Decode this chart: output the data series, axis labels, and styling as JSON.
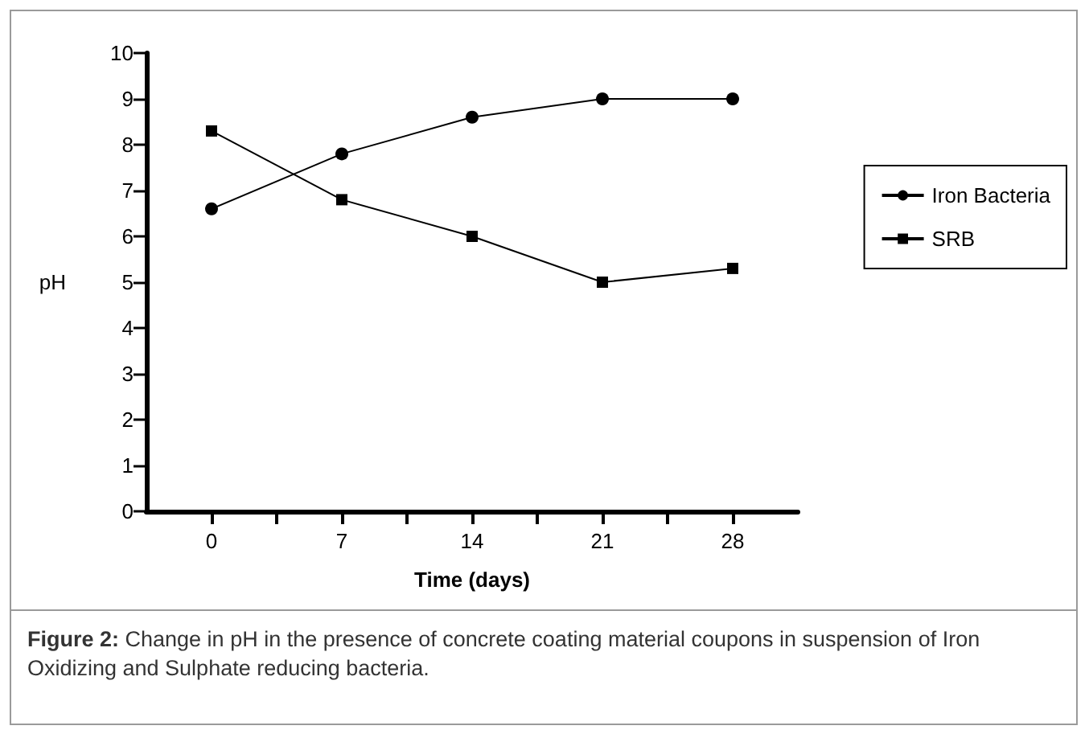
{
  "chart_data": {
    "type": "line",
    "xlabel": "Time (days)",
    "ylabel": "pH",
    "x": [
      0,
      7,
      14,
      21,
      28
    ],
    "series": [
      {
        "name": "Iron Bacteria",
        "color": "#000000",
        "marker": "circle",
        "values": [
          6.6,
          7.8,
          8.6,
          9.0,
          9.0
        ]
      },
      {
        "name": "SRB",
        "color": "#000000",
        "marker": "square",
        "values": [
          8.3,
          6.8,
          6.0,
          5.0,
          5.3
        ]
      }
    ],
    "xlim": [
      -3.5,
      31.5
    ],
    "xticks": [
      0,
      {
        "value": 3.5,
        "label": null
      },
      7,
      {
        "value": 10.5,
        "label": null
      },
      14,
      {
        "value": 17.5,
        "label": null
      },
      21,
      {
        "value": 24.5,
        "label": null
      },
      28
    ],
    "ylim": [
      0,
      10
    ],
    "yticks": [
      0,
      1,
      2,
      3,
      4,
      5,
      6,
      7,
      8,
      9,
      10
    ],
    "legend": "right",
    "line_style": "solid",
    "annotations": [
      "Figure 2: Change in pH in the presence of concrete coating material coupons in suspension of Iron Oxidizing and Sulphate reducing bacteria."
    ]
  }
}
